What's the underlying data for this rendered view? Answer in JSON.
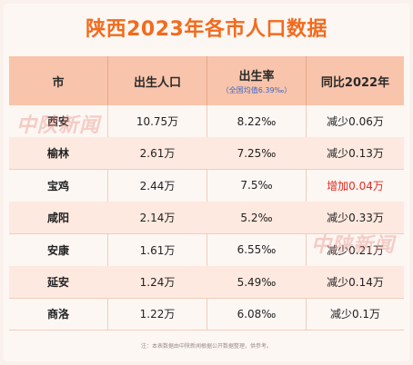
{
  "title": "陕西2023年各市人口数据",
  "headers": {
    "city": "市",
    "births": "出生人口",
    "birth_rate": "出生率",
    "birth_rate_note": "（全国均值6.39‰）",
    "yoy": "同比2022年"
  },
  "rows": [
    {
      "city": "西安",
      "births": "10.75万",
      "rate": "8.22‰",
      "yoy": "减少0.06万",
      "yoy_up": false
    },
    {
      "city": "榆林",
      "births": "2.61万",
      "rate": "7.25‰",
      "yoy": "减少0.13万",
      "yoy_up": false
    },
    {
      "city": "宝鸡",
      "births": "2.44万",
      "rate": "7.5‰",
      "yoy": "增加0.04万",
      "yoy_up": true
    },
    {
      "city": "咸阳",
      "births": "2.14万",
      "rate": "5.2‰",
      "yoy": "减少0.33万",
      "yoy_up": false
    },
    {
      "city": "安康",
      "births": "1.61万",
      "rate": "6.55‰",
      "yoy": "减少0.21万",
      "yoy_up": false
    },
    {
      "city": "延安",
      "births": "1.24万",
      "rate": "5.49‰",
      "yoy": "减少0.14万",
      "yoy_up": false
    },
    {
      "city": "商洛",
      "births": "1.22万",
      "rate": "6.08‰",
      "yoy": "减少0.1万",
      "yoy_up": false
    }
  ],
  "watermark": "中陕新闻",
  "footer": "注：本表数据由中陕新闻根据公开数据整理，供参考。",
  "colors": {
    "accent": "#f26b1d",
    "header_bg": "#f8c4ab",
    "increase": "#e52b1f"
  }
}
